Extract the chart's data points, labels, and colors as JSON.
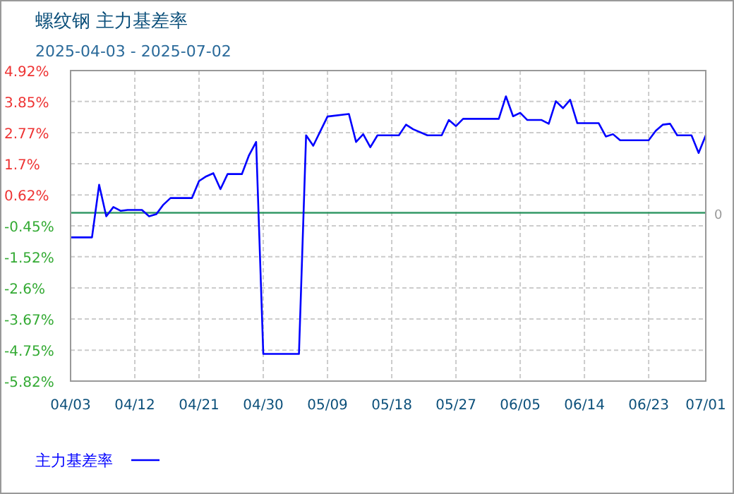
{
  "chart_data": {
    "type": "line",
    "title": "螺纹钢 主力基差率",
    "subtitle": "2025-04-03 - 2025-07-02",
    "x": [
      "2025-04-03",
      "2025-04-06",
      "2025-04-07",
      "2025-04-08",
      "2025-04-09",
      "2025-04-10",
      "2025-04-11",
      "2025-04-13",
      "2025-04-14",
      "2025-04-15",
      "2025-04-16",
      "2025-04-17",
      "2025-04-20",
      "2025-04-21",
      "2025-04-22",
      "2025-04-23",
      "2025-04-24",
      "2025-04-25",
      "2025-04-27",
      "2025-04-28",
      "2025-04-29",
      "2025-04-30",
      "2025-05-05",
      "2025-05-06",
      "2025-05-07",
      "2025-05-09",
      "2025-05-12",
      "2025-05-13",
      "2025-05-14",
      "2025-05-15",
      "2025-05-16",
      "2025-05-19",
      "2025-05-20",
      "2025-05-21",
      "2025-05-23",
      "2025-05-25",
      "2025-05-26",
      "2025-05-27",
      "2025-05-28",
      "2025-06-02",
      "2025-06-03",
      "2025-06-04",
      "2025-06-05",
      "2025-06-06",
      "2025-06-08",
      "2025-06-09",
      "2025-06-10",
      "2025-06-11",
      "2025-06-12",
      "2025-06-13",
      "2025-06-16",
      "2025-06-17",
      "2025-06-18",
      "2025-06-19",
      "2025-06-23",
      "2025-06-24",
      "2025-06-25",
      "2025-06-26",
      "2025-06-27",
      "2025-06-29",
      "2025-06-30",
      "2025-07-01"
    ],
    "series": [
      {
        "name": "主力基差率",
        "color": "#0000ff",
        "values": [
          -0.85,
          -0.85,
          0.97,
          -0.12,
          0.2,
          0.07,
          0.1,
          0.1,
          -0.12,
          -0.05,
          0.28,
          0.51,
          0.51,
          1.1,
          1.26,
          1.37,
          0.82,
          1.34,
          1.34,
          1.99,
          2.45,
          -4.88,
          -4.88,
          2.68,
          2.32,
          3.33,
          3.42,
          2.45,
          2.72,
          2.27,
          2.68,
          2.68,
          3.05,
          2.89,
          2.68,
          2.68,
          3.21,
          3.0,
          3.25,
          3.25,
          4.03,
          3.34,
          3.46,
          3.21,
          3.21,
          3.08,
          3.86,
          3.62,
          3.91,
          3.1,
          3.1,
          2.64,
          2.72,
          2.51,
          2.51,
          2.84,
          3.05,
          3.08,
          2.68,
          2.68,
          2.07,
          2.68
        ]
      }
    ],
    "xlim": [
      "2025-04-03",
      "2025-07-01"
    ],
    "xticks": [
      {
        "value": "2025-04-03",
        "label": "04/03"
      },
      {
        "value": "2025-04-12",
        "label": "04/12"
      },
      {
        "value": "2025-04-21",
        "label": "04/21"
      },
      {
        "value": "2025-04-30",
        "label": "04/30"
      },
      {
        "value": "2025-05-09",
        "label": "05/09"
      },
      {
        "value": "2025-05-18",
        "label": "05/18"
      },
      {
        "value": "2025-05-27",
        "label": "05/27"
      },
      {
        "value": "2025-06-05",
        "label": "06/05"
      },
      {
        "value": "2025-06-14",
        "label": "06/14"
      },
      {
        "value": "2025-06-23",
        "label": "06/23"
      },
      {
        "value": "2025-07-01",
        "label": "07/01"
      }
    ],
    "ylim": [
      -5.82,
      4.92
    ],
    "yticks": [
      {
        "value": 4.92,
        "label": "4.92%"
      },
      {
        "value": 3.85,
        "label": "3.85%"
      },
      {
        "value": 2.77,
        "label": "2.77%"
      },
      {
        "value": 1.7,
        "label": "1.7%"
      },
      {
        "value": 0.62,
        "label": "0.62%"
      },
      {
        "value": -0.45,
        "label": "-0.45%"
      },
      {
        "value": -1.52,
        "label": "-1.52%"
      },
      {
        "value": -2.6,
        "label": "-2.6%"
      },
      {
        "value": -3.67,
        "label": "-3.67%"
      },
      {
        "value": -4.75,
        "label": "-4.75%"
      },
      {
        "value": -5.82,
        "label": "-5.82%"
      }
    ],
    "ref_lines": [
      {
        "axis": "y",
        "value": 0,
        "label": "0",
        "color": "#339966"
      }
    ],
    "grid": true,
    "legend": "bottom",
    "marker": "none",
    "line_style": "solid"
  }
}
